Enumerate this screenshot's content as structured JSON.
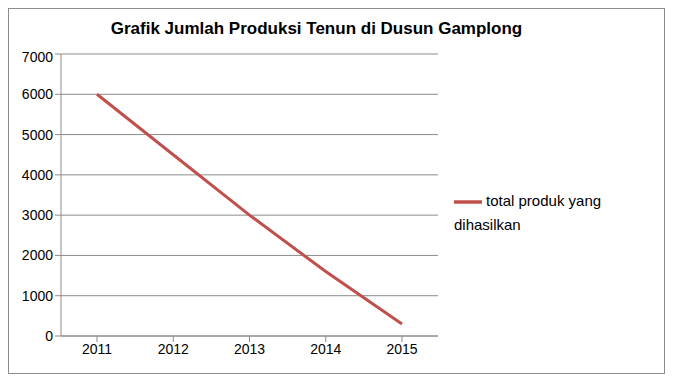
{
  "chart_data": {
    "type": "line",
    "title": "Grafik Jumlah Produksi Tenun di Dusun Gamplong",
    "categories": [
      "2011",
      "2012",
      "2013",
      "2014",
      "2015"
    ],
    "series": [
      {
        "name": "total produk yang dihasilkan",
        "color": "#c0504d",
        "values": [
          6000,
          4500,
          3000,
          1600,
          300
        ]
      }
    ],
    "ylim": [
      0,
      7000
    ],
    "yticks": [
      0,
      1000,
      2000,
      3000,
      4000,
      5000,
      6000,
      7000
    ],
    "grid": true,
    "legend": "right"
  }
}
